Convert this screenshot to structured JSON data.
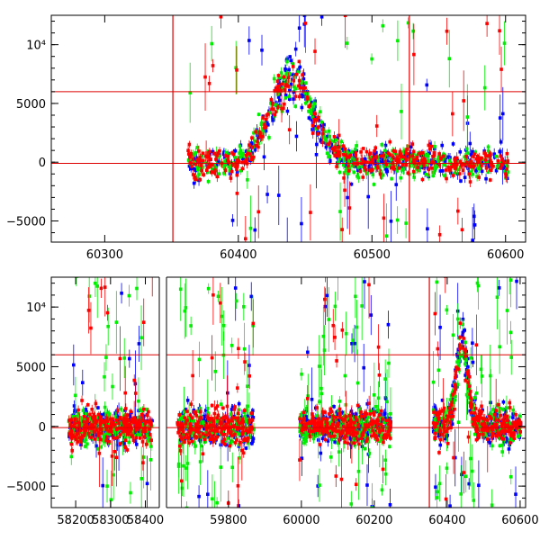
{
  "colors": {
    "blue": "#0000ff",
    "green": "#00ee00",
    "red": "#ff0000",
    "frame": "#000000",
    "refline": "#dd0000"
  },
  "chart_data": [
    {
      "type": "scatter",
      "title": "",
      "xlabel": "",
      "ylabel": "",
      "xlim": [
        60260,
        60615
      ],
      "ylim": [
        -6800,
        12500
      ],
      "xticks": [
        60300,
        60400,
        60500,
        60600
      ],
      "yticks": [
        -5000,
        0,
        5000,
        10000
      ],
      "ytick_labels": [
        "−5000",
        "0",
        "5000",
        "10⁴"
      ],
      "hlines": [
        6000,
        -100
      ],
      "vlines": [
        60351,
        60528
      ],
      "segments": [
        [
          60362,
          60602
        ]
      ],
      "peaks": [
        {
          "x": 60440,
          "y": 8200,
          "w": 16
        }
      ],
      "noise": 650,
      "series": [
        {
          "color": "blue",
          "outlier_rate": 0.08
        },
        {
          "color": "green",
          "outlier_rate": 0.1
        },
        {
          "color": "red",
          "outlier_rate": 0.06
        }
      ]
    },
    {
      "type": "scatter",
      "title": "",
      "xlabel": "",
      "ylabel": "",
      "xlim": [
        58130,
        58440,
        59630,
        60615
      ],
      "broken_axis": true,
      "ylim": [
        -6800,
        12500
      ],
      "xticks": [
        58200,
        58300,
        58400,
        59800,
        60000,
        60200,
        60400,
        60600
      ],
      "yticks": [
        -5000,
        0,
        5000,
        10000
      ],
      "ytick_labels": [
        "−5000",
        "0",
        "5000",
        "10⁴"
      ],
      "hlines": [
        6000,
        -100
      ],
      "vlines": [
        60351
      ],
      "segments": [
        [
          58180,
          58420
        ],
        [
          59660,
          59870
        ],
        [
          59995,
          60245
        ],
        [
          60362,
          60602
        ]
      ],
      "peaks": [
        {
          "x": 60440,
          "y": 8200,
          "w": 16
        }
      ],
      "noise": 700,
      "series": [
        {
          "color": "blue",
          "outlier_rate": 0.1
        },
        {
          "color": "green",
          "outlier_rate": 0.16
        },
        {
          "color": "red",
          "outlier_rate": 0.08
        }
      ]
    }
  ]
}
